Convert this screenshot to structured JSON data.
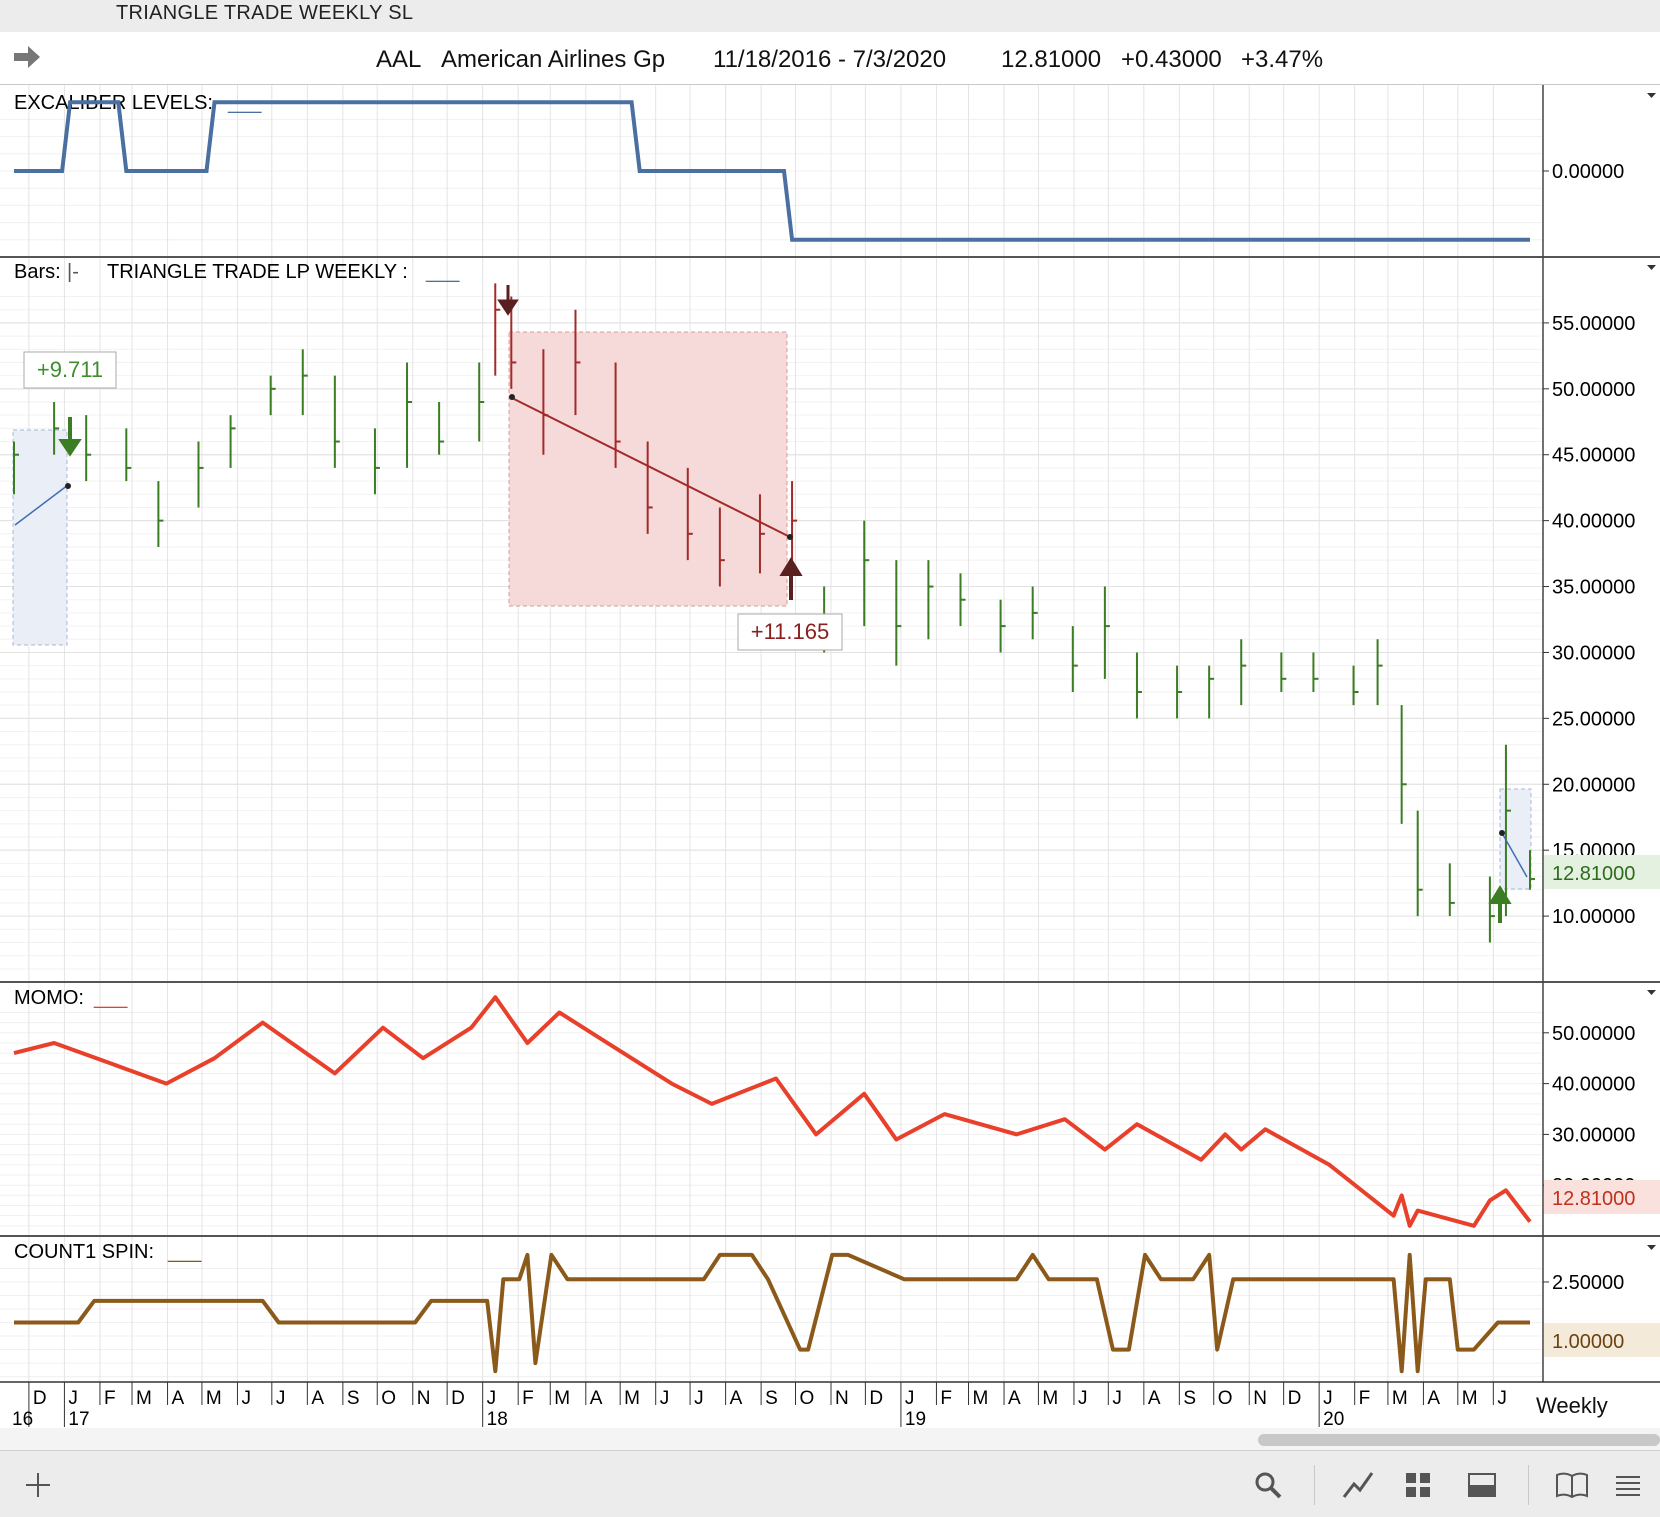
{
  "window": {
    "title": "TRIANGLE TRADE WEEKLY SL"
  },
  "header": {
    "symbol": "AAL",
    "company": "American Airlines Gp",
    "date_range": "11/18/2016 - 7/3/2020",
    "last": "12.81000",
    "change": "+0.43000",
    "change_pct": "+3.47%"
  },
  "panels": {
    "excaliber": {
      "label": "EXCALIBER LEVELS:",
      "legend_swatch": "___",
      "axis_ticks": [
        "0.00000"
      ]
    },
    "price": {
      "label_prefix": "Bars:",
      "label_bar": "|-",
      "label": "TRIANGLE TRADE LP WEEKLY :",
      "legend_swatch": "___",
      "axis_ticks": [
        "55.00000",
        "50.00000",
        "45.00000",
        "40.00000",
        "35.00000",
        "30.00000",
        "25.00000",
        "20.00000",
        "15.00000",
        "10.00000"
      ],
      "last_value_tag": "12.81000",
      "annotations": [
        {
          "text": "+9.711",
          "color": "#3e8e2f"
        },
        {
          "text": "+11.165",
          "color": "#8b1f1f"
        }
      ]
    },
    "momo": {
      "label": "MOMO:",
      "legend_swatch": "___",
      "axis_ticks": [
        "50.00000",
        "40.00000",
        "30.00000",
        "20.00000"
      ],
      "last_value_tag": "12.81000"
    },
    "count1": {
      "label": "COUNT1 SPIN:",
      "legend_swatch": "___",
      "axis_ticks": [
        "2.50000"
      ],
      "last_value_tag": "1.00000"
    }
  },
  "time_axis": {
    "months": [
      "D",
      "J",
      "F",
      "M",
      "A",
      "M",
      "J",
      "J",
      "A",
      "S",
      "O",
      "N",
      "D",
      "J",
      "F",
      "M",
      "A",
      "M",
      "J",
      "J",
      "A",
      "S",
      "O",
      "N",
      "D",
      "J",
      "F",
      "M",
      "A",
      "M",
      "J",
      "J",
      "A",
      "S",
      "O",
      "N",
      "D",
      "J",
      "F",
      "M",
      "A",
      "M",
      "J"
    ],
    "years": [
      "16",
      "17",
      "18",
      "19",
      "20"
    ]
  },
  "period_button": "Weekly",
  "colors": {
    "up_bar": "#3a7d22",
    "down_bar": "#a32a2a",
    "excaliber": "#4a6fa0",
    "momo": "#e8402a",
    "count1": "#8b5a1a",
    "triangle_fill": "#f6dada",
    "triangle_blue": "#e9eef7"
  },
  "toolbar": {
    "icons": [
      "plus-icon",
      "search-icon",
      "draw-line-icon",
      "grid-layout-icon",
      "panel-layout-icon",
      "book-icon",
      "menu-icon"
    ]
  },
  "chart_data": [
    {
      "type": "line",
      "name": "EXCALIBER LEVELS",
      "x": [
        "2016-11-18",
        "2016-12-30",
        "2017-01-06",
        "2017-02-17",
        "2017-02-24",
        "2017-05-05",
        "2017-05-12",
        "2018-05-11",
        "2018-05-18",
        "2018-09-21",
        "2018-09-28",
        "2020-07-03"
      ],
      "values": [
        0.0,
        0.0,
        1.0,
        1.0,
        0.0,
        0.0,
        1.0,
        1.0,
        0.0,
        0.0,
        -1.0,
        -1.0
      ],
      "ylim": [
        -1.25,
        1.25
      ]
    },
    {
      "type": "bar",
      "style": "ohlc",
      "name": "Bars",
      "approximate": true,
      "x": [
        "2016-11-18",
        "2016-12-23",
        "2017-01-20",
        "2017-02-24",
        "2017-03-24",
        "2017-04-28",
        "2017-05-26",
        "2017-06-30",
        "2017-07-28",
        "2017-08-25",
        "2017-09-29",
        "2017-10-27",
        "2017-11-24",
        "2017-12-29",
        "2018-01-12",
        "2018-01-26",
        "2018-02-23",
        "2018-03-23",
        "2018-04-27",
        "2018-05-25",
        "2018-06-29",
        "2018-07-27",
        "2018-08-31",
        "2018-09-28",
        "2018-10-26",
        "2018-11-30",
        "2018-12-28",
        "2019-01-25",
        "2019-02-22",
        "2019-03-29",
        "2019-04-26",
        "2019-05-31",
        "2019-06-28",
        "2019-07-26",
        "2019-08-30",
        "2019-09-27",
        "2019-10-25",
        "2019-11-29",
        "2019-12-27",
        "2020-01-31",
        "2020-02-21",
        "2020-03-13",
        "2020-03-27",
        "2020-04-24",
        "2020-05-29",
        "2020-06-12",
        "2020-07-03"
      ],
      "high": [
        46,
        49,
        48,
        47,
        43,
        46,
        48,
        51,
        53,
        51,
        47,
        52,
        49,
        52,
        58,
        57,
        53,
        56,
        52,
        46,
        44,
        41,
        42,
        43,
        35,
        40,
        37,
        37,
        36,
        34,
        35,
        32,
        35,
        30,
        29,
        29,
        31,
        30,
        30,
        29,
        31,
        26,
        18,
        14,
        13,
        23,
        15
      ],
      "low": [
        42,
        45,
        43,
        43,
        38,
        41,
        44,
        48,
        48,
        44,
        42,
        44,
        45,
        46,
        51,
        50,
        45,
        48,
        44,
        39,
        37,
        35,
        36,
        37,
        30,
        32,
        29,
        31,
        32,
        30,
        31,
        27,
        28,
        25,
        25,
        25,
        26,
        27,
        27,
        26,
        26,
        17,
        10,
        10,
        8,
        10,
        12
      ],
      "close": [
        45,
        47,
        45,
        44,
        40,
        44,
        47,
        50,
        51,
        46,
        44,
        49,
        46,
        49,
        56,
        52,
        48,
        52,
        46,
        41,
        39,
        37,
        39,
        40,
        32,
        37,
        32,
        35,
        34,
        32,
        33,
        29,
        32,
        27,
        27,
        28,
        29,
        28,
        28,
        27,
        29,
        20,
        12,
        11,
        10,
        18,
        12.81
      ],
      "ylim": [
        5,
        60
      ]
    },
    {
      "type": "line",
      "name": "MOMO",
      "approximate": true,
      "x": [
        "2016-11-18",
        "2016-12-23",
        "2017-02-10",
        "2017-03-31",
        "2017-05-12",
        "2017-06-23",
        "2017-08-25",
        "2017-10-06",
        "2017-11-10",
        "2017-12-22",
        "2018-01-12",
        "2018-02-09",
        "2018-03-09",
        "2018-04-13",
        "2018-06-15",
        "2018-07-20",
        "2018-09-14",
        "2018-10-19",
        "2018-11-30",
        "2018-12-28",
        "2019-02-08",
        "2019-04-12",
        "2019-05-24",
        "2019-06-28",
        "2019-07-26",
        "2019-09-20",
        "2019-10-11",
        "2019-10-25",
        "2019-11-15",
        "2020-01-10",
        "2020-03-06",
        "2020-03-13",
        "2020-03-20",
        "2020-03-27",
        "2020-05-15",
        "2020-05-29",
        "2020-06-12",
        "2020-07-03"
      ],
      "values": [
        46,
        48,
        44,
        40,
        45,
        52,
        42,
        51,
        45,
        51,
        57,
        48,
        54,
        49,
        40,
        36,
        41,
        30,
        38,
        29,
        34,
        30,
        33,
        27,
        32,
        25,
        30,
        27,
        31,
        24,
        14,
        18,
        12,
        15,
        12,
        17,
        19,
        12.81
      ],
      "ylim": [
        10,
        60
      ]
    },
    {
      "type": "line",
      "name": "COUNT1 SPIN",
      "approximate": true,
      "x": [
        "2016-11-18",
        "2017-01-13",
        "2017-01-27",
        "2017-06-23",
        "2017-07-07",
        "2017-11-03",
        "2017-11-17",
        "2018-01-05",
        "2018-01-12",
        "2018-01-19",
        "2018-02-02",
        "2018-02-09",
        "2018-02-16",
        "2018-03-02",
        "2018-03-16",
        "2018-07-13",
        "2018-07-27",
        "2018-08-24",
        "2018-09-07",
        "2018-10-05",
        "2018-10-12",
        "2018-11-02",
        "2018-11-16",
        "2019-01-04",
        "2019-01-18",
        "2019-04-12",
        "2019-04-26",
        "2019-05-10",
        "2019-06-21",
        "2019-07-05",
        "2019-07-19",
        "2019-08-02",
        "2019-08-16",
        "2019-09-13",
        "2019-09-27",
        "2019-10-04",
        "2019-10-18",
        "2020-03-06",
        "2020-03-13",
        "2020-03-20",
        "2020-03-27",
        "2020-04-03",
        "2020-04-24",
        "2020-05-01",
        "2020-05-15",
        "2020-06-05",
        "2020-06-12",
        "2020-07-03"
      ],
      "values": [
        1,
        1,
        1.8,
        1.8,
        1,
        1,
        1.8,
        1.8,
        -0.8,
        2.6,
        2.6,
        3.5,
        -0.5,
        3.5,
        2.6,
        2.6,
        3.5,
        3.5,
        2.6,
        0,
        0,
        3.5,
        3.5,
        2.6,
        2.6,
        2.6,
        3.5,
        2.6,
        2.6,
        0,
        0,
        3.5,
        2.6,
        2.6,
        3.5,
        0,
        2.6,
        2.6,
        -0.8,
        3.5,
        -0.8,
        2.6,
        2.6,
        0,
        0,
        1,
        1,
        1
      ],
      "ylim": [
        -1.2,
        4.2
      ]
    }
  ]
}
